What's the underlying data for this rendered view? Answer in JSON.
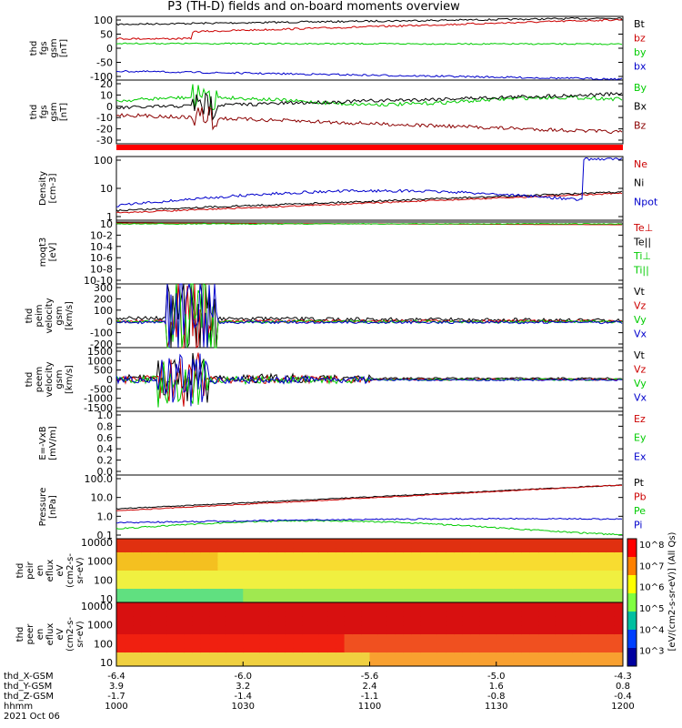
{
  "title": "P3 (TH-D) fields and on-board moments overview",
  "colors": {
    "black": "#000000",
    "red": "#cc0000",
    "green": "#00cc00",
    "blue": "#0000cc",
    "brightgreen": "#22ee22",
    "darkred": "#8b0000"
  },
  "chart_data": [
    {
      "type": "line",
      "panel": "fgs-gsm",
      "ylabel": [
        "thd",
        "fgs",
        "gsm",
        "[nT]"
      ],
      "yticks": [
        "100",
        "50",
        "0",
        "-50",
        "-100"
      ],
      "ylim": [
        -100,
        100
      ],
      "series": [
        {
          "name": "Bt",
          "color": "#000000",
          "level": 82
        },
        {
          "name": "bz",
          "color": "#cc0000",
          "level": 40
        },
        {
          "name": "by",
          "color": "#00cc00",
          "level": 15
        },
        {
          "name": "bx",
          "color": "#0000cc",
          "level": -75
        }
      ]
    },
    {
      "type": "line",
      "panel": "fgs-dsl",
      "ylabel": [
        "thd",
        "fgs",
        "gsm",
        "[nT]"
      ],
      "yticks": [
        "20",
        "10",
        "0",
        "-10",
        "-20",
        "-30"
      ],
      "ylim": [
        -35,
        20
      ],
      "series": [
        {
          "name": "By",
          "color": "#00cc00"
        },
        {
          "name": "Bx",
          "color": "#000000"
        },
        {
          "name": "Bz",
          "color": "#8b0000"
        }
      ]
    },
    {
      "type": "line",
      "panel": "density",
      "ylabel": [
        "Density",
        "[cm-3]"
      ],
      "yticks": [
        "100",
        "10",
        "1"
      ],
      "scale": "log",
      "series": [
        {
          "name": "Ne",
          "color": "#cc0000"
        },
        {
          "name": "Ni",
          "color": "#000000"
        },
        {
          "name": "Npot",
          "color": "#0000cc"
        }
      ]
    },
    {
      "type": "line",
      "panel": "temperature",
      "ylabel": [
        "moqt3",
        "[eV]"
      ],
      "yticks": [
        "10",
        "10-2",
        "10-4",
        "10-6",
        "10-8",
        "10-10"
      ],
      "scale": "log",
      "series": [
        {
          "name": "Te⊥",
          "color": "#cc0000"
        },
        {
          "name": "Te||",
          "color": "#000000"
        },
        {
          "name": "Ti⊥",
          "color": "#00cc00"
        },
        {
          "name": "Ti||",
          "color": "#00cc00"
        }
      ]
    },
    {
      "type": "line",
      "panel": "ion-velocity",
      "ylabel": [
        "thd",
        "peim",
        "velocity",
        "gsm",
        "[km/s]"
      ],
      "yticks": [
        "300",
        "200",
        "100",
        "0",
        "-100",
        "-200"
      ],
      "ylim": [
        -220,
        320
      ],
      "series": [
        {
          "name": "Vt",
          "color": "#000000"
        },
        {
          "name": "Vz",
          "color": "#cc0000"
        },
        {
          "name": "Vy",
          "color": "#00cc00"
        },
        {
          "name": "Vx",
          "color": "#0000cc"
        }
      ]
    },
    {
      "type": "line",
      "panel": "electron-velocity",
      "ylabel": [
        "thd",
        "peem",
        "velocity",
        "gsm",
        "[km/s]"
      ],
      "yticks": [
        "1500",
        "1000",
        "500",
        "0",
        "-500",
        "-1000",
        "-1500"
      ],
      "ylim": [
        -1500,
        1500
      ],
      "series": [
        {
          "name": "Vt",
          "color": "#000000"
        },
        {
          "name": "Vz",
          "color": "#cc0000"
        },
        {
          "name": "Vy",
          "color": "#00cc00"
        },
        {
          "name": "Vx",
          "color": "#0000cc"
        }
      ]
    },
    {
      "type": "line",
      "panel": "efield",
      "ylabel": [
        "E=-VxB",
        "[mV/m]"
      ],
      "yticks": [
        "1.0",
        "0.8",
        "0.6",
        "0.4",
        "0.2",
        "0.0"
      ],
      "ylim": [
        0,
        1
      ],
      "series": [
        {
          "name": "Ez",
          "color": "#cc0000"
        },
        {
          "name": "Ey",
          "color": "#00cc00"
        },
        {
          "name": "Ex",
          "color": "#0000cc"
        }
      ]
    },
    {
      "type": "line",
      "panel": "pressure",
      "ylabel": [
        "Pressure",
        "[nPa]"
      ],
      "yticks": [
        "100.0",
        "10.0",
        "1.0",
        "0.1"
      ],
      "scale": "log",
      "series": [
        {
          "name": "Pt",
          "color": "#000000"
        },
        {
          "name": "Pb",
          "color": "#cc0000"
        },
        {
          "name": "Pe",
          "color": "#00cc00"
        },
        {
          "name": "Pi",
          "color": "#0000cc"
        }
      ]
    },
    {
      "type": "heatmap",
      "panel": "ion-spectrogram",
      "ylabel": [
        "thd",
        "peir",
        "en",
        "eflux",
        "eV",
        "(cm2-s-",
        "sr-eV)"
      ],
      "yticks": [
        "10000",
        "1000",
        "100",
        "10"
      ]
    },
    {
      "type": "heatmap",
      "panel": "electron-spectrogram",
      "ylabel": [
        "thd",
        "peer",
        "en",
        "eflux",
        "eV",
        "(cm2-s-",
        "sr-eV)"
      ],
      "yticks": [
        "10000",
        "1000",
        "100",
        "10"
      ]
    }
  ],
  "colorbar": {
    "label": "[eV/(cm2-s-sr-eV)] (All Qs)",
    "ticks": [
      "10^8",
      "10^7",
      "10^6",
      "10^5",
      "10^4",
      "10^3"
    ]
  },
  "xaxis": {
    "tick_labels": [
      "-6.4",
      "-6.0",
      "-5.6",
      "-5.0",
      "-4.3"
    ],
    "rows": [
      {
        "name": "thd_X-GSM",
        "values": [
          "-6.4",
          "-6.0",
          "-5.6",
          "-5.0",
          "-4.3"
        ]
      },
      {
        "name": "thd_Y-GSM",
        "values": [
          "3.9",
          "3.2",
          "2.4",
          "1.6",
          "0.8"
        ]
      },
      {
        "name": "thd_Z-GSM",
        "values": [
          "-1.7",
          "-1.4",
          "-1.1",
          "-0.8",
          "-0.4"
        ]
      },
      {
        "name": "hhmm",
        "values": [
          "1000",
          "1030",
          "1100",
          "1130",
          "1200"
        ]
      }
    ],
    "date": "2021 Oct 06"
  }
}
